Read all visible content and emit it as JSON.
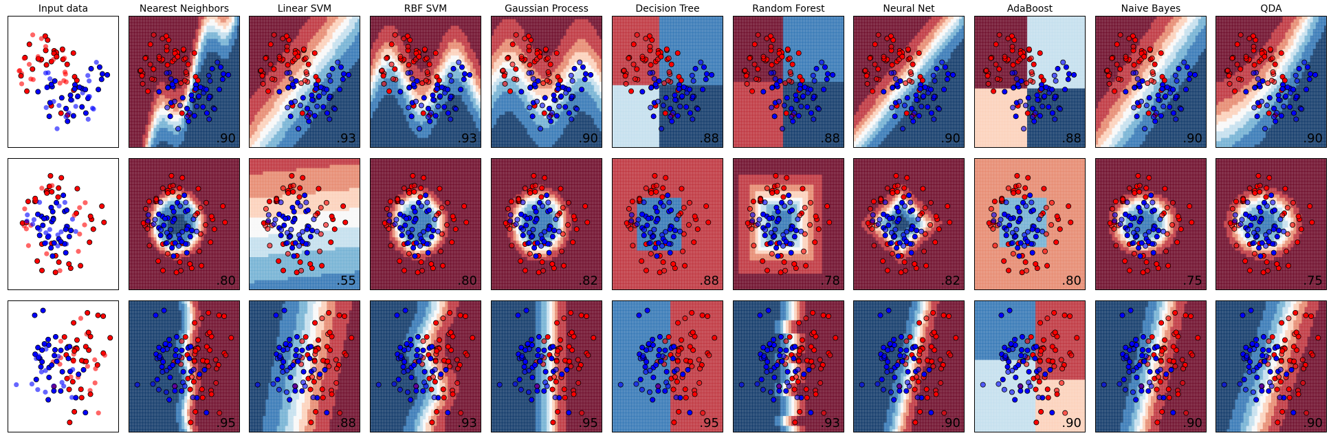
{
  "chart_data": {
    "type": "scatter",
    "title": "",
    "columns": [
      "Input data",
      "Nearest Neighbors",
      "Linear SVM",
      "RBF SVM",
      "Gaussian Process",
      "Decision Tree",
      "Random Forest",
      "Neural Net",
      "AdaBoost",
      "Naive Bayes",
      "QDA"
    ],
    "rows": [
      {
        "dataset": "moons",
        "scores": [
          null,
          ".90",
          ".93",
          ".93",
          ".90",
          ".88",
          ".88",
          ".90",
          ".88",
          ".90",
          ".90"
        ]
      },
      {
        "dataset": "circles",
        "scores": [
          null,
          ".80",
          ".55",
          ".80",
          ".82",
          ".88",
          ".78",
          ".82",
          ".80",
          ".75",
          ".75"
        ]
      },
      {
        "dataset": "linearly_separable",
        "scores": [
          null,
          ".95",
          ".88",
          ".93",
          ".95",
          ".95",
          ".93",
          ".90",
          ".90",
          ".90",
          ".90"
        ]
      }
    ],
    "class_colors": {
      "class_0": "#ff0000",
      "class_1": "#0000ff"
    },
    "colormap": [
      "#67001f",
      "#b2182b",
      "#d6604d",
      "#f4a582",
      "#fddbc7",
      "#f7f7f7",
      "#d1e5f0",
      "#92c5de",
      "#4393c3",
      "#2166ac",
      "#053061"
    ],
    "axes_ticks": "none",
    "grid": false
  }
}
